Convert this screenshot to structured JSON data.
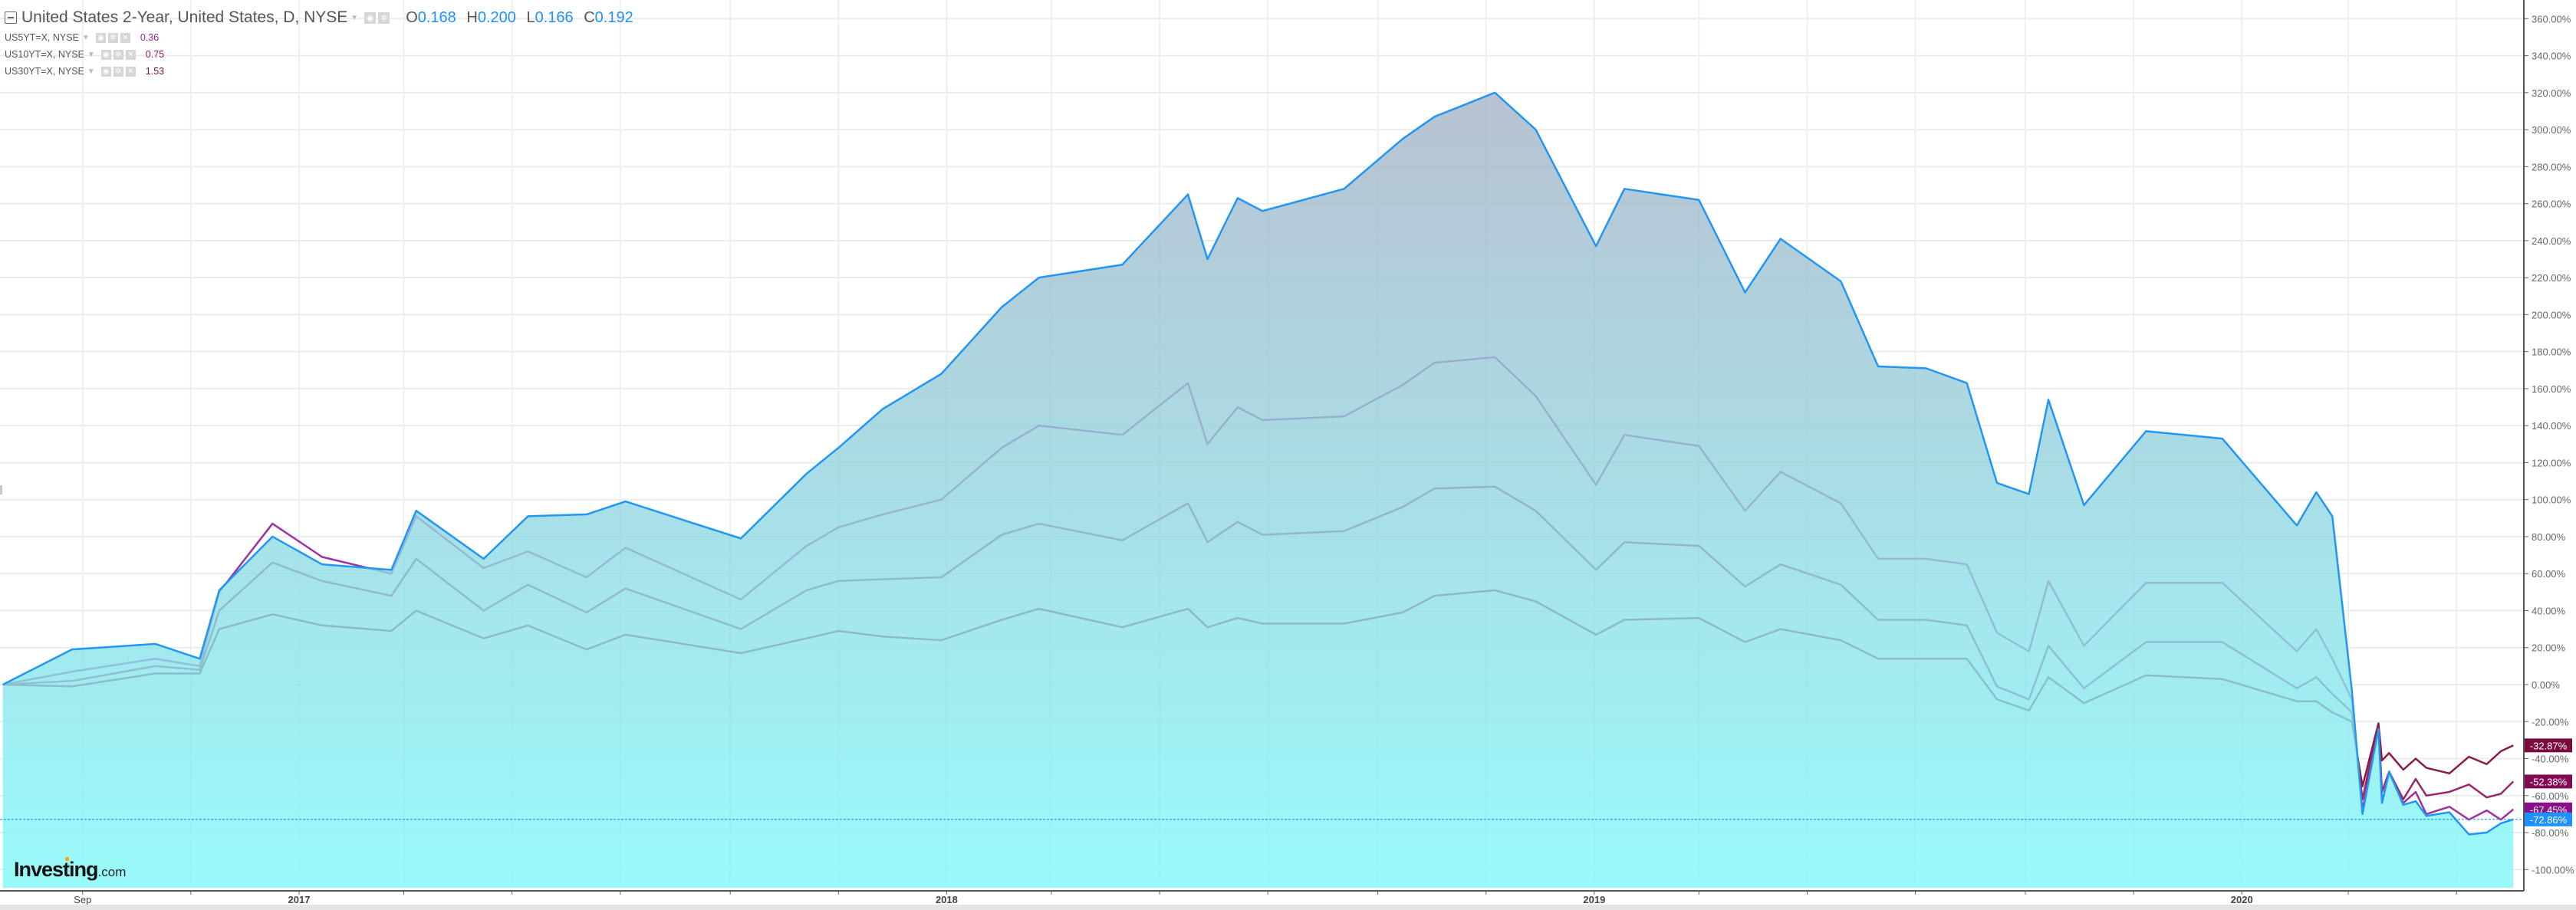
{
  "legend": {
    "title": "United States 2-Year, United States, D, NYSE",
    "ohlc": [
      {
        "key": "O",
        "value": "0.168"
      },
      {
        "key": "H",
        "value": "0.200"
      },
      {
        "key": "L",
        "value": "0.166"
      },
      {
        "key": "C",
        "value": "0.192"
      }
    ],
    "comparisons": [
      {
        "label": "US5YT=X, NYSE",
        "value": "0.36",
        "color": "#9b1f9b"
      },
      {
        "label": "US10YT=X, NYSE",
        "value": "0.75",
        "color": "#8b1a5e"
      },
      {
        "label": "US30YT=X, NYSE",
        "value": "1.53",
        "color": "#7a1040"
      }
    ],
    "icons": [
      "eye-icon",
      "gear-icon",
      "close-icon"
    ]
  },
  "logo": {
    "brand": "Investing",
    "suffix": ".com",
    "accent": "#f5a623"
  },
  "chart_data": {
    "type": "area",
    "yscale": "percent change",
    "ylim": [
      -110,
      365
    ],
    "grid": true,
    "y_ticks": [
      -100,
      -80,
      -60,
      -40,
      -20,
      0,
      20,
      40,
      60,
      80,
      100,
      120,
      140,
      160,
      180,
      200,
      220,
      240,
      260,
      280,
      300,
      320,
      340,
      360
    ],
    "y_tick_labels": [
      "-100.00%",
      "-80.00%",
      "-60.00%",
      "-40.00%",
      "-20.00%",
      "0.00%",
      "20.00%",
      "40.00%",
      "60.00%",
      "80.00%",
      "100.00%",
      "120.00%",
      "140.00%",
      "160.00%",
      "180.00%",
      "200.00%",
      "220.00%",
      "240.00%",
      "260.00%",
      "280.00%",
      "300.00%",
      "320.00%",
      "340.00%",
      "360.00%"
    ],
    "x_ticks": [
      {
        "date": "2016-09-01",
        "label": "Sep"
      },
      {
        "date": "2017-01-01",
        "label": "2017"
      },
      {
        "date": "2018-01-01",
        "label": "2018"
      },
      {
        "date": "2019-01-01",
        "label": "2019"
      },
      {
        "date": "2020-01-01",
        "label": "2020"
      }
    ],
    "x": [
      "2016-07-18",
      "2016-08-26",
      "2016-10-12",
      "2016-11-06",
      "2016-11-17",
      "2016-12-17",
      "2017-01-14",
      "2017-02-22",
      "2017-03-08",
      "2017-04-15",
      "2017-05-10",
      "2017-06-12",
      "2017-07-04",
      "2017-09-07",
      "2017-10-14",
      "2017-11-01",
      "2017-11-26",
      "2017-12-29",
      "2018-02-01",
      "2018-02-22",
      "2018-04-10",
      "2018-05-17",
      "2018-05-28",
      "2018-06-14",
      "2018-06-28",
      "2018-08-13",
      "2018-09-15",
      "2018-10-03",
      "2018-11-06",
      "2018-11-29",
      "2019-01-02",
      "2019-01-18",
      "2019-03-01",
      "2019-03-27",
      "2019-04-16",
      "2019-05-20",
      "2019-06-10",
      "2019-07-07",
      "2019-07-30",
      "2019-08-16",
      "2019-09-03",
      "2019-09-14",
      "2019-10-04",
      "2019-11-08",
      "2019-12-21",
      "2020-02-01",
      "2020-02-12",
      "2020-02-21",
      "2020-03-03",
      "2020-03-09",
      "2020-03-18",
      "2020-03-20",
      "2020-03-24",
      "2020-04-01",
      "2020-04-08",
      "2020-04-14",
      "2020-04-27",
      "2020-05-08",
      "2020-05-18",
      "2020-05-26",
      "2020-06-02"
    ],
    "series": [
      {
        "name": "United States 2-Year",
        "color": "#2196f3",
        "values": [
          0,
          19,
          22,
          14,
          51,
          80,
          65,
          62,
          94,
          68,
          91,
          92,
          99,
          79,
          114,
          128,
          149,
          168,
          204,
          220,
          227,
          265,
          230,
          263,
          256,
          268,
          295,
          307,
          320,
          300,
          237,
          268,
          262,
          212,
          241,
          218,
          172,
          171,
          163,
          109,
          103,
          154,
          97,
          137,
          133,
          86,
          104,
          91,
          -3,
          -70,
          -24,
          -64,
          -47,
          -65,
          -63,
          -71,
          -69,
          -81,
          -80,
          -75,
          -72.86
        ]
      },
      {
        "name": "US5YT=X, NYSE",
        "color": "#a0329f",
        "values": [
          0,
          7,
          14,
          10,
          50,
          87,
          69,
          60,
          91,
          63,
          72,
          58,
          74,
          46,
          75,
          85,
          92,
          100,
          128,
          140,
          135,
          163,
          130,
          150,
          143,
          145,
          162,
          174,
          177,
          156,
          108,
          135,
          129,
          94,
          115,
          98,
          68,
          68,
          65,
          28,
          18,
          56,
          21,
          55,
          55,
          18,
          30,
          14,
          -8,
          -68,
          -22,
          -64,
          -48,
          -64,
          -58,
          -70,
          -66,
          -73,
          -68,
          -73,
          -67.45
        ]
      },
      {
        "name": "US10YT=X, NYSE",
        "color": "#962a6a",
        "values": [
          0,
          2,
          10,
          8,
          40,
          66,
          56,
          48,
          68,
          40,
          54,
          39,
          52,
          30,
          51,
          56,
          57,
          58,
          81,
          87,
          78,
          98,
          77,
          88,
          81,
          83,
          96,
          106,
          107,
          94,
          62,
          77,
          75,
          53,
          65,
          54,
          35,
          35,
          32,
          -1,
          -8,
          21,
          -2,
          23,
          23,
          -2,
          4,
          -5,
          -15,
          -62,
          -21,
          -58,
          -47,
          -62,
          -51,
          -60,
          -58,
          -54,
          -61,
          -59,
          -52.38
        ]
      },
      {
        "name": "US30YT=X, NYSE",
        "color": "#8a1a48",
        "values": [
          0,
          -1,
          6,
          6,
          30,
          38,
          32,
          29,
          40,
          25,
          32,
          19,
          27,
          17,
          25,
          29,
          26,
          24,
          35,
          41,
          31,
          41,
          31,
          36,
          33,
          33,
          39,
          48,
          51,
          45,
          27,
          35,
          36,
          23,
          30,
          24,
          14,
          14,
          14,
          -8,
          -14,
          4,
          -10,
          5,
          3,
          -9,
          -9,
          -15,
          -20,
          -55,
          -21,
          -41,
          -37,
          -46,
          -40,
          -45,
          -48,
          -39,
          -43,
          -36,
          -32.87
        ]
      }
    ],
    "last_value_labels": [
      {
        "text": "-32.87%",
        "value": -32.87,
        "color": "#7b0b3c"
      },
      {
        "text": "-52.38%",
        "value": -52.38,
        "color": "#820a55"
      },
      {
        "text": "-67.45%",
        "value": -67.45,
        "color": "#8a108a"
      },
      {
        "text": "-72.86%",
        "value": -72.86,
        "color": "#1e90ff"
      }
    ],
    "price_line_value": -72.86,
    "area_gradient": [
      "#a6b2c6",
      "#80f9f9"
    ]
  }
}
